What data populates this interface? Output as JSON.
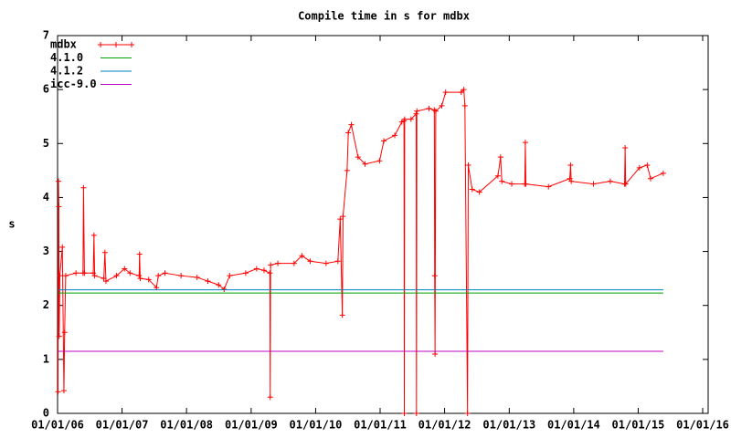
{
  "chart_data": {
    "type": "line",
    "title": "Compile time in s for mdbx",
    "y_label": "s",
    "xlim": [
      "2006-01-01",
      "2016-01-01"
    ],
    "xticks": [
      {
        "value": "2006-01-01",
        "label": "01/01/06"
      },
      {
        "value": "2007-01-01",
        "label": "01/01/07"
      },
      {
        "value": "2008-01-01",
        "label": "01/01/08"
      },
      {
        "value": "2009-01-01",
        "label": "01/01/09"
      },
      {
        "value": "2010-01-01",
        "label": "01/01/10"
      },
      {
        "value": "2011-01-01",
        "label": "01/01/11"
      },
      {
        "value": "2012-01-01",
        "label": "01/01/12"
      },
      {
        "value": "2013-01-01",
        "label": "01/01/13"
      },
      {
        "value": "2014-01-01",
        "label": "01/01/14"
      },
      {
        "value": "2015-01-01",
        "label": "01/01/15"
      },
      {
        "value": "2016-01-01",
        "label": "01/01/16"
      }
    ],
    "ylim": [
      0,
      7
    ],
    "yticks": [
      0,
      1,
      2,
      3,
      4,
      5,
      6,
      7
    ],
    "legend": "top-left",
    "series": [
      {
        "name": "mdbx",
        "color": "#ff0000",
        "marker": "+",
        "x": [
          "2006-01-04",
          "2006-01-06",
          "2006-01-08",
          "2006-01-10",
          "2006-01-14",
          "2006-01-28",
          "2006-02-06",
          "2006-02-10",
          "2006-02-16",
          "2006-04-15",
          "2006-05-25",
          "2006-05-28",
          "2006-06-02",
          "2006-07-22",
          "2006-07-26",
          "2006-07-30",
          "2006-09-20",
          "2006-09-26",
          "2006-10-02",
          "2006-12-01",
          "2007-01-15",
          "2007-02-15",
          "2007-04-08",
          "2007-04-10",
          "2007-04-14",
          "2007-06-01",
          "2007-07-15",
          "2007-07-25",
          "2007-09-01",
          "2007-12-01",
          "2008-03-01",
          "2008-05-01",
          "2008-07-01",
          "2008-08-01",
          "2008-09-01",
          "2008-12-01",
          "2009-02-01",
          "2009-03-15",
          "2009-04-17",
          "2009-04-19",
          "2009-04-21",
          "2009-06-01",
          "2009-09-01",
          "2009-10-15",
          "2009-12-01",
          "2010-03-01",
          "2010-05-07",
          "2010-05-20",
          "2010-06-01",
          "2010-06-05",
          "2010-06-28",
          "2010-07-05",
          "2010-07-22",
          "2010-08-29",
          "2010-10-08",
          "2010-12-29",
          "2011-01-22",
          "2011-03-25",
          "2011-05-04",
          "2011-05-16",
          "2011-05-18",
          "2011-05-20",
          "2011-06-25",
          "2011-07-24",
          "2011-07-26",
          "2011-07-28",
          "2011-10-05",
          "2011-11-04",
          "2011-11-06",
          "2011-11-08",
          "2011-11-12",
          "2011-12-16",
          "2012-01-07",
          "2012-04-04",
          "2012-04-19",
          "2012-04-25",
          "2012-05-10",
          "2012-05-14",
          "2012-06-05",
          "2012-07-16",
          "2012-10-29",
          "2012-11-13",
          "2012-11-20",
          "2013-01-15",
          "2013-03-30",
          "2013-04-02",
          "2013-04-05",
          "2013-08-11",
          "2013-12-10",
          "2013-12-14",
          "2013-12-18",
          "2014-04-23",
          "2014-07-27",
          "2014-10-16",
          "2014-10-19",
          "2014-10-22",
          "2015-01-08",
          "2015-02-21",
          "2015-03-12",
          "2015-05-23"
        ],
        "values": [
          0.4,
          4.3,
          3.83,
          1.43,
          2.55,
          3.08,
          0.42,
          1.5,
          2.55,
          2.6,
          2.6,
          4.18,
          2.6,
          2.6,
          3.3,
          2.55,
          2.5,
          2.98,
          2.45,
          2.55,
          2.68,
          2.6,
          2.55,
          2.95,
          2.5,
          2.48,
          2.33,
          2.55,
          2.6,
          2.55,
          2.52,
          2.45,
          2.38,
          2.3,
          2.55,
          2.6,
          2.68,
          2.65,
          2.6,
          0.3,
          2.75,
          2.78,
          2.78,
          2.92,
          2.82,
          2.78,
          2.82,
          3.6,
          1.82,
          3.65,
          4.5,
          5.2,
          5.35,
          4.75,
          4.62,
          4.68,
          5.05,
          5.15,
          5.4,
          5.42,
          0,
          5.45,
          5.45,
          5.55,
          0,
          5.6,
          5.65,
          5.62,
          2.55,
          1.1,
          5.6,
          5.7,
          5.95,
          5.95,
          6.0,
          5.7,
          0,
          4.6,
          4.15,
          4.1,
          4.4,
          4.75,
          4.3,
          4.25,
          4.25,
          5.02,
          4.25,
          4.2,
          4.35,
          4.6,
          4.3,
          4.25,
          4.3,
          4.25,
          4.92,
          4.25,
          4.55,
          4.6,
          4.35,
          4.45
        ]
      },
      {
        "name": "4.1.0",
        "color": "#00a000",
        "x": [
          "2006-01-04",
          "2015-05-23"
        ],
        "values": [
          2.23,
          2.23
        ]
      },
      {
        "name": "4.1.2",
        "color": "#0080c0",
        "x": [
          "2006-01-04",
          "2015-05-23"
        ],
        "values": [
          2.29,
          2.29
        ]
      },
      {
        "name": "icc-9.0",
        "color": "#c000c0",
        "x": [
          "2006-01-04",
          "2015-05-23"
        ],
        "values": [
          1.15,
          1.15
        ]
      }
    ]
  }
}
